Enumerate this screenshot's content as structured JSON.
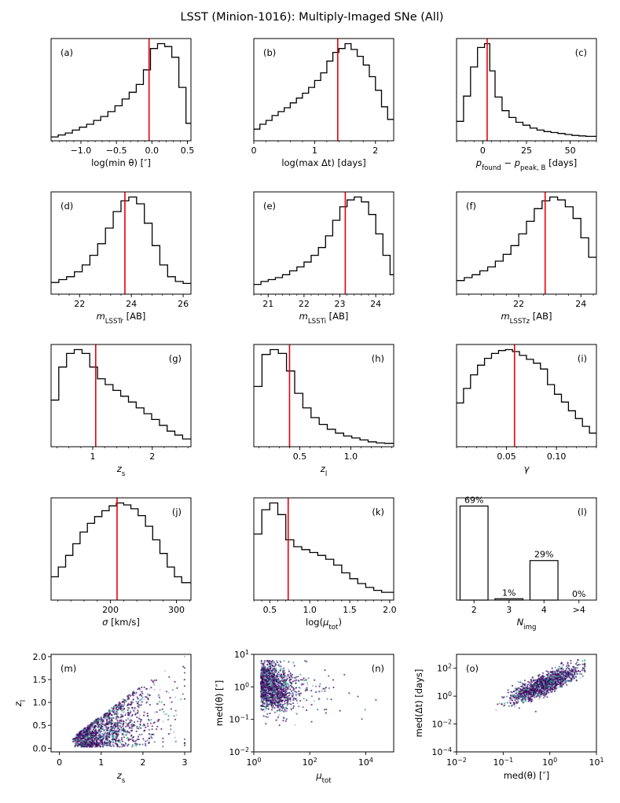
{
  "figure_title": "LSST (Minion-1016): Multiply-Imaged SNe (All)",
  "chart_data": [
    {
      "id": "a",
      "type": "histogram",
      "panel_label": "(a)",
      "xlabel": "log(min θ) [″]",
      "xlim": [
        -1.42,
        0.55
      ],
      "xticks": [
        -1.0,
        -0.5,
        0.0,
        0.5
      ],
      "xtick_labels": [
        "−1.0",
        "−0.5",
        "0.0",
        "0.5"
      ],
      "bin_edges": [
        -1.42,
        -1.32,
        -1.22,
        -1.12,
        -1.02,
        -0.92,
        -0.82,
        -0.72,
        -0.62,
        -0.52,
        -0.42,
        -0.32,
        -0.22,
        -0.12,
        -0.02,
        0.08,
        0.18,
        0.28,
        0.38,
        0.48,
        0.55
      ],
      "heights": [
        0.04,
        0.06,
        0.08,
        0.11,
        0.14,
        0.17,
        0.21,
        0.25,
        0.3,
        0.36,
        0.43,
        0.5,
        0.58,
        0.73,
        0.95,
        1.0,
        0.97,
        0.86,
        0.55,
        0.18
      ],
      "median": -0.04
    },
    {
      "id": "b",
      "type": "histogram",
      "panel_label": "(b)",
      "xlabel": "log(max Δt) [days]",
      "xlim": [
        0,
        2.3
      ],
      "xticks": [
        0,
        1,
        2
      ],
      "xtick_labels": [
        "0",
        "1",
        "2"
      ],
      "bin_edges": [
        0,
        0.1,
        0.2,
        0.3,
        0.4,
        0.5,
        0.6,
        0.7,
        0.8,
        0.9,
        1.0,
        1.1,
        1.2,
        1.3,
        1.4,
        1.5,
        1.6,
        1.7,
        1.8,
        1.9,
        2.0,
        2.1,
        2.2,
        2.3
      ],
      "heights": [
        0.12,
        0.17,
        0.21,
        0.26,
        0.3,
        0.34,
        0.39,
        0.44,
        0.49,
        0.55,
        0.62,
        0.7,
        0.82,
        0.91,
        0.95,
        1.0,
        0.94,
        0.87,
        0.78,
        0.66,
        0.52,
        0.35,
        0.22
      ],
      "median": 1.38
    },
    {
      "id": "c",
      "type": "histogram",
      "panel_label": "(c)",
      "xlabel": "p_found − p_peak,B [days]",
      "xlim": [
        -15,
        65
      ],
      "xticks": [
        0,
        25,
        50
      ],
      "xtick_labels": [
        "0",
        "25",
        "50"
      ],
      "bin_edges": [
        -15,
        -11,
        -7,
        -3,
        1,
        4,
        7,
        11,
        15,
        19,
        23,
        27,
        31,
        35,
        39,
        43,
        47,
        51,
        55,
        59,
        65
      ],
      "heights": [
        0.2,
        0.46,
        0.76,
        0.96,
        1.0,
        0.72,
        0.45,
        0.31,
        0.24,
        0.19,
        0.16,
        0.13,
        0.11,
        0.095,
        0.085,
        0.075,
        0.065,
        0.055,
        0.05,
        0.045
      ],
      "median": 2.5
    },
    {
      "id": "d",
      "type": "histogram",
      "panel_label": "(d)",
      "xlabel": "m_LSSTr [AB]",
      "xlim": [
        20.9,
        26.3
      ],
      "xticks": [
        22,
        24,
        26
      ],
      "xtick_labels": [
        "22",
        "24",
        "26"
      ],
      "bin_edges": [
        20.9,
        21.2,
        21.5,
        21.8,
        22.1,
        22.4,
        22.7,
        23.0,
        23.3,
        23.6,
        23.9,
        24.2,
        24.5,
        24.8,
        25.1,
        25.4,
        25.7,
        26.0,
        26.3
      ],
      "heights": [
        0.12,
        0.15,
        0.18,
        0.23,
        0.3,
        0.4,
        0.52,
        0.68,
        0.85,
        0.96,
        1.0,
        0.93,
        0.73,
        0.5,
        0.3,
        0.18,
        0.13,
        0.11
      ],
      "median": 23.75
    },
    {
      "id": "e",
      "type": "histogram",
      "panel_label": "(e)",
      "xlabel": "m_LSSTi [AB]",
      "xlim": [
        20.6,
        24.5
      ],
      "xticks": [
        21,
        22,
        23,
        24
      ],
      "xtick_labels": [
        "21",
        "22",
        "23",
        "24"
      ],
      "bin_edges": [
        20.6,
        20.8,
        21.0,
        21.2,
        21.4,
        21.6,
        21.8,
        22.0,
        22.2,
        22.4,
        22.6,
        22.8,
        23.0,
        23.2,
        23.4,
        23.6,
        23.8,
        24.0,
        24.2,
        24.4,
        24.5
      ],
      "heights": [
        0.1,
        0.13,
        0.15,
        0.17,
        0.2,
        0.24,
        0.28,
        0.33,
        0.4,
        0.48,
        0.6,
        0.76,
        0.9,
        0.97,
        1.0,
        0.95,
        0.82,
        0.62,
        0.4,
        0.2
      ],
      "median": 23.15
    },
    {
      "id": "f",
      "type": "histogram",
      "panel_label": "(f)",
      "xlabel": "m_LSSTz [AB]",
      "xlim": [
        20.0,
        24.5
      ],
      "xticks": [
        22,
        24
      ],
      "xtick_labels": [
        "22",
        "24"
      ],
      "bin_edges": [
        20.0,
        20.25,
        20.5,
        20.75,
        21.0,
        21.25,
        21.5,
        21.75,
        22.0,
        22.25,
        22.5,
        22.75,
        23.0,
        23.25,
        23.5,
        23.75,
        24.0,
        24.25,
        24.5
      ],
      "heights": [
        0.14,
        0.17,
        0.2,
        0.24,
        0.28,
        0.34,
        0.41,
        0.5,
        0.62,
        0.75,
        0.88,
        0.96,
        1.0,
        0.97,
        0.9,
        0.78,
        0.58,
        0.38
      ],
      "median": 22.85
    },
    {
      "id": "g",
      "type": "histogram",
      "panel_label": "(g)",
      "xlabel": "z_s",
      "xlim": [
        0.3,
        2.65
      ],
      "xticks": [
        1,
        2
      ],
      "xtick_labels": [
        "1",
        "2"
      ],
      "bin_edges": [
        0.3,
        0.43,
        0.56,
        0.69,
        0.82,
        0.95,
        1.08,
        1.21,
        1.34,
        1.47,
        1.6,
        1.73,
        1.86,
        1.99,
        2.12,
        2.25,
        2.38,
        2.51,
        2.65
      ],
      "heights": [
        0.48,
        0.82,
        0.96,
        1.0,
        0.96,
        0.82,
        0.7,
        0.64,
        0.58,
        0.52,
        0.46,
        0.4,
        0.34,
        0.28,
        0.22,
        0.16,
        0.12,
        0.08
      ],
      "median": 1.05
    },
    {
      "id": "h",
      "type": "histogram",
      "panel_label": "(h)",
      "xlabel": "z_l",
      "xlim": [
        0.05,
        1.42
      ],
      "xticks": [
        0.5,
        1.0
      ],
      "xtick_labels": [
        "0.5",
        "1.0"
      ],
      "bin_edges": [
        0.05,
        0.13,
        0.21,
        0.29,
        0.37,
        0.45,
        0.53,
        0.61,
        0.69,
        0.77,
        0.85,
        0.93,
        1.01,
        1.09,
        1.17,
        1.25,
        1.33,
        1.42
      ],
      "heights": [
        0.62,
        0.95,
        1.0,
        0.96,
        0.78,
        0.55,
        0.4,
        0.3,
        0.23,
        0.18,
        0.14,
        0.11,
        0.09,
        0.07,
        0.05,
        0.04,
        0.035
      ],
      "median": 0.4
    },
    {
      "id": "i",
      "type": "histogram",
      "panel_label": "(i)",
      "xlabel": "γ",
      "xlim": [
        0.0,
        0.14
      ],
      "xticks": [
        0.05,
        0.1
      ],
      "xtick_labels": [
        "0.05",
        "0.10"
      ],
      "bin_edges": [
        0.0,
        0.007,
        0.014,
        0.021,
        0.028,
        0.035,
        0.042,
        0.049,
        0.056,
        0.063,
        0.07,
        0.077,
        0.084,
        0.091,
        0.098,
        0.105,
        0.112,
        0.119,
        0.126,
        0.133,
        0.14
      ],
      "heights": [
        0.45,
        0.6,
        0.74,
        0.84,
        0.91,
        0.96,
        0.99,
        1.0,
        0.98,
        0.94,
        0.9,
        0.86,
        0.8,
        0.64,
        0.54,
        0.46,
        0.37,
        0.29,
        0.21,
        0.14
      ],
      "median": 0.058
    },
    {
      "id": "j",
      "type": "histogram",
      "panel_label": "(j)",
      "xlabel": "σ [km/s]",
      "xlim": [
        110,
        322
      ],
      "xticks": [
        200,
        300
      ],
      "xtick_labels": [
        "200",
        "300"
      ],
      "bin_edges": [
        110,
        121,
        132,
        143,
        154,
        165,
        176,
        187,
        198,
        209,
        220,
        231,
        242,
        253,
        264,
        275,
        286,
        297,
        308,
        322
      ],
      "heights": [
        0.24,
        0.34,
        0.46,
        0.58,
        0.7,
        0.79,
        0.86,
        0.92,
        0.97,
        1.0,
        0.98,
        0.94,
        0.87,
        0.76,
        0.62,
        0.48,
        0.34,
        0.24,
        0.18
      ],
      "median": 210
    },
    {
      "id": "k",
      "type": "histogram",
      "panel_label": "(k)",
      "xlabel": "log(μ_tot)",
      "xlim": [
        0.3,
        2.05
      ],
      "xticks": [
        0.5,
        1.0,
        1.5,
        2.0
      ],
      "xtick_labels": [
        "0.5",
        "1.0",
        "1.5",
        "2.0"
      ],
      "bin_edges": [
        0.3,
        0.4,
        0.5,
        0.6,
        0.7,
        0.8,
        0.9,
        1.0,
        1.1,
        1.2,
        1.3,
        1.4,
        1.5,
        1.6,
        1.7,
        1.8,
        1.9,
        2.05
      ],
      "heights": [
        0.68,
        0.93,
        1.0,
        0.88,
        0.62,
        0.55,
        0.52,
        0.49,
        0.46,
        0.42,
        0.36,
        0.28,
        0.22,
        0.17,
        0.13,
        0.1,
        0.08
      ],
      "median": 0.73
    },
    {
      "id": "l",
      "type": "bar",
      "panel_label": "(l)",
      "xlabel": "N_img",
      "categories": [
        "2",
        "3",
        "4",
        ">4"
      ],
      "values": [
        69,
        1,
        29,
        0
      ],
      "value_labels": [
        "69%",
        "1%",
        "29%",
        "0%"
      ],
      "ylim": [
        0,
        75
      ]
    },
    {
      "id": "m",
      "type": "scatter",
      "panel_label": "(m)",
      "xlabel": "z_s",
      "ylabel": "z_l",
      "xlim": [
        -0.2,
        3.15
      ],
      "ylim": [
        -0.08,
        2.05
      ],
      "xticks": [
        0,
        1,
        2,
        3
      ],
      "xtick_labels": [
        "0",
        "1",
        "2",
        "3"
      ],
      "yticks": [
        0.0,
        0.5,
        1.0,
        1.5,
        2.0
      ],
      "ytick_labels": [
        "0.0",
        "0.5",
        "1.0",
        "1.5",
        "2.0"
      ]
    },
    {
      "id": "n",
      "type": "scatter",
      "panel_label": "(n)",
      "xlabel": "μ_tot",
      "ylabel": "med(θ) [″]",
      "xscale": "log",
      "yscale": "log",
      "xlim": [
        1,
        100000
      ],
      "ylim": [
        0.01,
        10
      ],
      "xticks": [
        1,
        100,
        10000
      ],
      "xtick_labels": [
        "10^0",
        "10^2",
        "10^4"
      ],
      "yticks": [
        0.01,
        0.1,
        1,
        10
      ],
      "ytick_labels": [
        "10^-2",
        "10^-1",
        "10^0",
        "10^1"
      ]
    },
    {
      "id": "o",
      "type": "scatter",
      "panel_label": "(o)",
      "xlabel": "med(θ) [″]",
      "ylabel": "med(Δt) [days]",
      "xscale": "log",
      "yscale": "log",
      "xlim": [
        0.01,
        10
      ],
      "ylim": [
        0.0001,
        1000
      ],
      "xticks": [
        0.01,
        0.1,
        1,
        10
      ],
      "xtick_labels": [
        "10^-2",
        "10^-1",
        "10^0",
        "10^1"
      ],
      "yticks": [
        0.0001,
        0.01,
        1,
        100
      ],
      "ytick_labels": [
        "10^-4",
        "10^-2",
        "10^0",
        "10^2"
      ]
    }
  ]
}
